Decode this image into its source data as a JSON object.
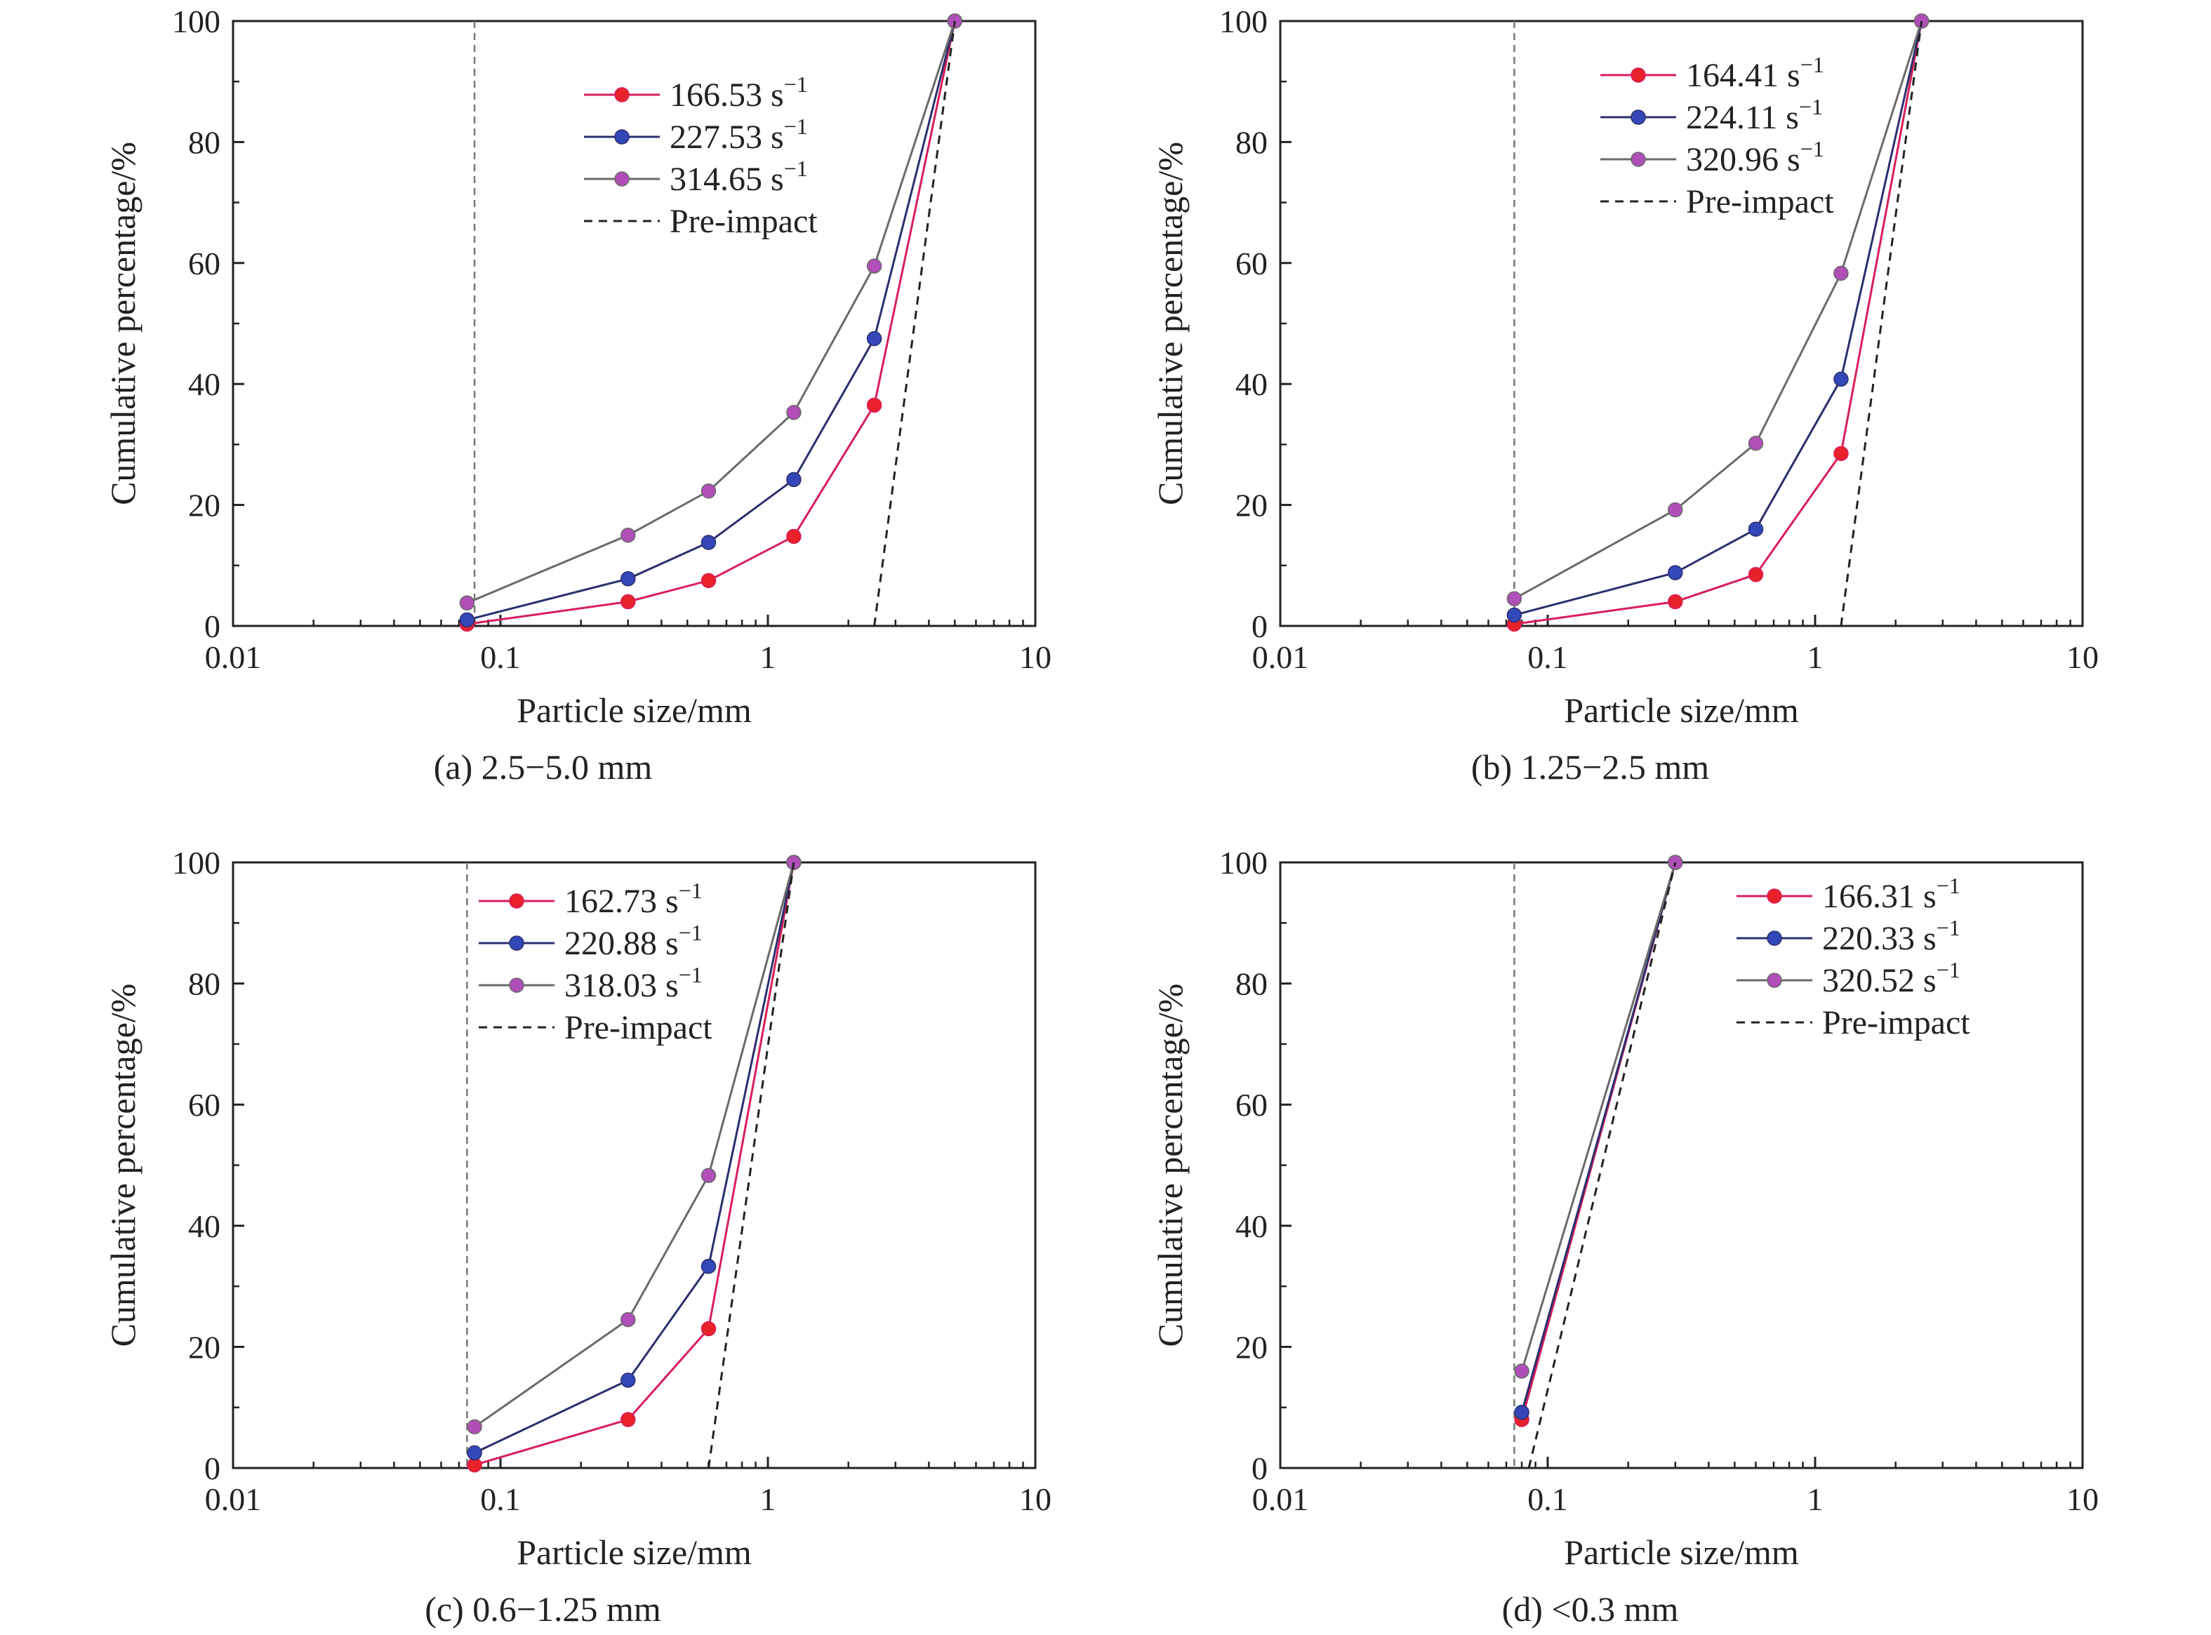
{
  "colors": {
    "red_line": "#d81e5b",
    "red_marker": "#e8212b",
    "blue_line": "#2b2f6e",
    "blue_marker": "#3347b8",
    "purple_line": "#6a6a6a",
    "purple_marker": "#b04fb8",
    "pre_impact": "#222222",
    "axis": "#222222",
    "vertical_ref": "#777777"
  },
  "chart_data": [
    {
      "type": "line",
      "caption": "(a) 2.5−5.0 mm",
      "xlabel": "Particle size/mm",
      "ylabel": "Cumulative percentage/%",
      "xscale": "log",
      "xlim": [
        0.01,
        10
      ],
      "ylim": [
        0,
        100
      ],
      "xticks": [
        "0.01",
        "0.1",
        "1",
        "10"
      ],
      "yticks": [
        "0",
        "20",
        "40",
        "60",
        "80",
        "100"
      ],
      "legend_position": "top-center",
      "vertical_reference_x": 0.08,
      "series": [
        {
          "name": "166.53 s",
          "sup": "−1",
          "color_key": "red",
          "x": [
            0.075,
            0.3,
            0.6,
            1.25,
            2.5,
            5
          ],
          "y": [
            0.3,
            4,
            7.5,
            14.8,
            36.5,
            100
          ]
        },
        {
          "name": "227.53 s",
          "sup": "−1",
          "color_key": "blue",
          "x": [
            0.075,
            0.3,
            0.6,
            1.25,
            2.5,
            5
          ],
          "y": [
            1,
            7.8,
            13.8,
            24.2,
            47.5,
            100
          ]
        },
        {
          "name": "314.65 s",
          "sup": "−1",
          "color_key": "purple",
          "x": [
            0.075,
            0.3,
            0.6,
            1.25,
            2.5,
            5
          ],
          "y": [
            3.8,
            15,
            22.3,
            35.3,
            59.5,
            100
          ]
        },
        {
          "name": "Pre-impact",
          "dashed": true,
          "x": [
            2.5,
            5
          ],
          "y": [
            0,
            100
          ]
        }
      ]
    },
    {
      "type": "line",
      "caption": "(b) 1.25−2.5 mm",
      "xlabel": "Particle size/mm",
      "ylabel": "Cumulative percentage/%",
      "xscale": "log",
      "xlim": [
        0.01,
        10
      ],
      "ylim": [
        0,
        100
      ],
      "xticks": [
        "0.01",
        "0.1",
        "1",
        "10"
      ],
      "yticks": [
        "0",
        "20",
        "40",
        "60",
        "80",
        "100"
      ],
      "legend_position": "top-center",
      "vertical_reference_x": 0.075,
      "series": [
        {
          "name": "164.41 s",
          "sup": "−1",
          "color_key": "red",
          "x": [
            0.075,
            0.3,
            0.6,
            1.25,
            2.5
          ],
          "y": [
            0.3,
            4,
            8.5,
            28.5,
            100
          ]
        },
        {
          "name": "224.11 s",
          "sup": "−1",
          "color_key": "blue",
          "x": [
            0.075,
            0.3,
            0.6,
            1.25,
            2.5
          ],
          "y": [
            1.8,
            8.8,
            16,
            40.8,
            100
          ]
        },
        {
          "name": "320.96 s",
          "sup": "−1",
          "color_key": "purple",
          "x": [
            0.075,
            0.3,
            0.6,
            1.25,
            2.5
          ],
          "y": [
            4.5,
            19.2,
            30.2,
            58.3,
            100
          ]
        },
        {
          "name": "Pre-impact",
          "dashed": true,
          "x": [
            1.25,
            2.5
          ],
          "y": [
            0,
            100
          ]
        }
      ]
    },
    {
      "type": "line",
      "caption": "(c) 0.6−1.25 mm",
      "xlabel": "Particle size/mm",
      "ylabel": "Cumulative percentage/%",
      "xscale": "log",
      "xlim": [
        0.01,
        10
      ],
      "ylim": [
        0,
        100
      ],
      "xticks": [
        "0.01",
        "0.1",
        "1",
        "10"
      ],
      "yticks": [
        "0",
        "20",
        "40",
        "60",
        "80",
        "100"
      ],
      "legend_position": "top-left",
      "vertical_reference_x": 0.075,
      "series": [
        {
          "name": "162.73 s",
          "sup": "−1",
          "color_key": "red",
          "x": [
            0.08,
            0.3,
            0.6,
            1.25
          ],
          "y": [
            0.5,
            8,
            23,
            100
          ]
        },
        {
          "name": "220.88 s",
          "sup": "−1",
          "color_key": "blue",
          "x": [
            0.08,
            0.3,
            0.6,
            1.25
          ],
          "y": [
            2.5,
            14.5,
            33.3,
            100
          ]
        },
        {
          "name": "318.03 s",
          "sup": "−1",
          "color_key": "purple",
          "x": [
            0.08,
            0.3,
            0.6,
            1.25
          ],
          "y": [
            6.8,
            24.5,
            48.3,
            100
          ]
        },
        {
          "name": "Pre-impact",
          "dashed": true,
          "x": [
            0.6,
            1.25
          ],
          "y": [
            0,
            100
          ]
        }
      ]
    },
    {
      "type": "line",
      "caption": "(d) <0.3 mm",
      "xlabel": "Particle size/mm",
      "ylabel": "Cumulative percentage/%",
      "xscale": "log",
      "xlim": [
        0.01,
        10
      ],
      "ylim": [
        0,
        100
      ],
      "xticks": [
        "0.01",
        "0.1",
        "1",
        "10"
      ],
      "yticks": [
        "0",
        "20",
        "40",
        "60",
        "80",
        "100"
      ],
      "legend_position": "top-right",
      "vertical_reference_x": 0.075,
      "series": [
        {
          "name": "166.31 s",
          "sup": "−1",
          "color_key": "red",
          "x": [
            0.08,
            0.3
          ],
          "y": [
            8,
            100
          ]
        },
        {
          "name": "220.33 s",
          "sup": "−1",
          "color_key": "blue",
          "x": [
            0.08,
            0.3
          ],
          "y": [
            9.2,
            100
          ]
        },
        {
          "name": "320.52 s",
          "sup": "−1",
          "color_key": "purple",
          "x": [
            0.08,
            0.3
          ],
          "y": [
            16,
            100
          ]
        },
        {
          "name": "Pre-impact",
          "dashed": true,
          "x": [
            0.085,
            0.3
          ],
          "y": [
            0,
            100
          ]
        }
      ]
    }
  ]
}
